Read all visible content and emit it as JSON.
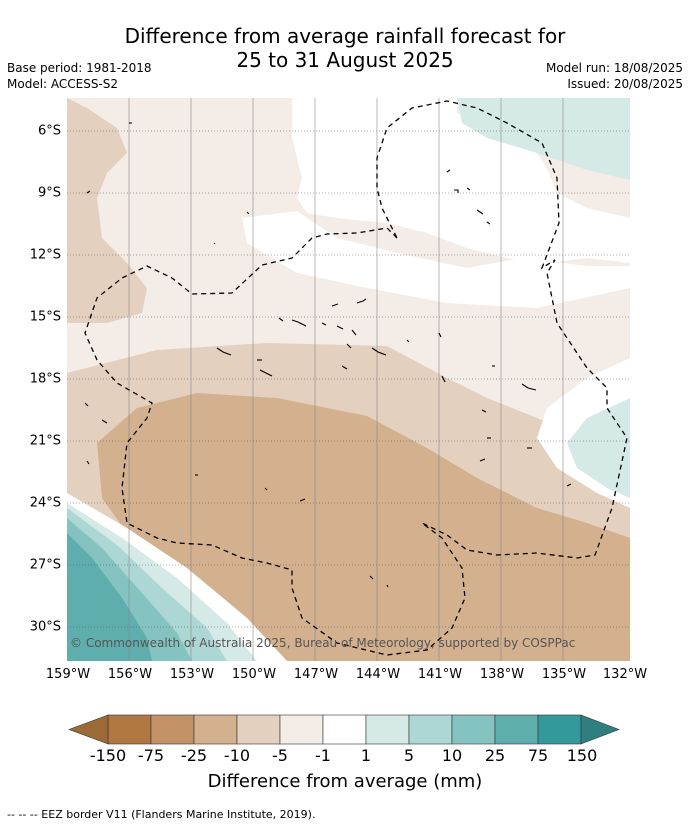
{
  "header": {
    "title_line1": "Difference from average rainfall forecast for",
    "title_line2": "25 to 31 August 2025",
    "base_period": "Base period: 1981-2018",
    "model": "Model: ACCESS-S2",
    "model_run": "Model run: 18/08/2025",
    "issued": "Issued: 20/08/2025"
  },
  "map": {
    "lat_labels": [
      "6°S",
      "9°S",
      "12°S",
      "15°S",
      "18°S",
      "21°S",
      "24°S",
      "27°S",
      "30°S"
    ],
    "lon_labels": [
      "159°W",
      "156°W",
      "153°W",
      "150°W",
      "147°W",
      "144°W",
      "141°W",
      "138°W",
      "135°W",
      "132°W"
    ],
    "copyright": "© Commonwealth of Australia 2025, Bureau of Meteorology, supported by COSPPac"
  },
  "legend": {
    "tick_labels": [
      "-150",
      "-75",
      "-25",
      "-10",
      "-5",
      "-1",
      "1",
      "5",
      "10",
      "25",
      "75",
      "150"
    ],
    "title": "Difference from average (mm)",
    "colors": [
      "#9c6a37",
      "#b07740",
      "#c49267",
      "#d3b08e",
      "#e3d0bf",
      "#f4ece6",
      "#ffffff",
      "#d5e9e7",
      "#acd7d5",
      "#84c3c0",
      "#5daead",
      "#34999a",
      "#2f7f80"
    ]
  },
  "footer": {
    "eez_note": "--  --  -- EEZ border V11 (Flanders Marine Institute, 2019)."
  }
}
